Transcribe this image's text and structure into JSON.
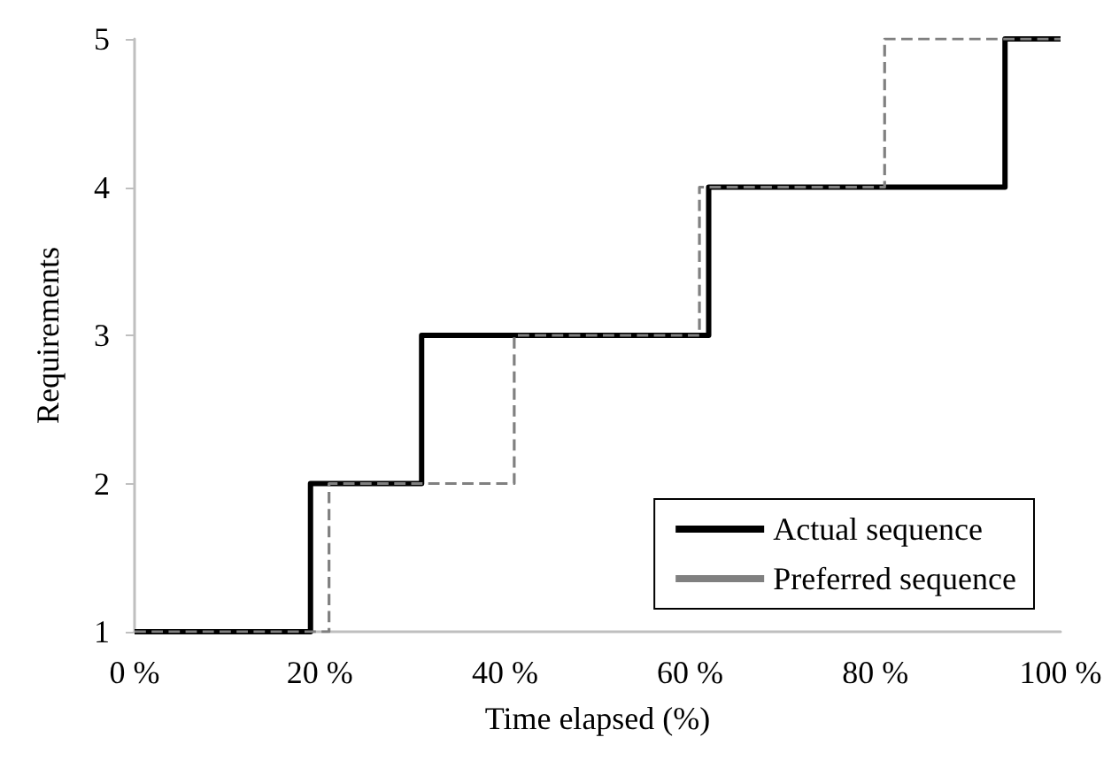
{
  "chart_data": {
    "type": "step",
    "xlabel": "Time elapsed (%)",
    "ylabel": "Requirements",
    "xlim": [
      0,
      100
    ],
    "xticks": [
      {
        "value": 0,
        "label": "0 %"
      },
      {
        "value": 20,
        "label": "20 %"
      },
      {
        "value": 40,
        "label": "40 %"
      },
      {
        "value": 60,
        "label": "60 %"
      },
      {
        "value": 80,
        "label": "80 %"
      },
      {
        "value": 100,
        "label": "100 %"
      }
    ],
    "ylim": [
      1,
      5
    ],
    "yticks": [
      1,
      2,
      3,
      4,
      5
    ],
    "grid": false,
    "legend": "bottom right",
    "marker": "none",
    "series": [
      {
        "name": "Actual sequence",
        "color": "#000000",
        "line_style": "solid",
        "x": [
          0,
          19,
          31,
          62,
          94,
          100
        ],
        "values": [
          1,
          2,
          3,
          4,
          5,
          5
        ]
      },
      {
        "name": "Preferred sequence",
        "color": "#808080",
        "line_style": "dashed",
        "x": [
          0,
          21,
          41,
          61,
          81,
          100
        ],
        "values": [
          1,
          2,
          3,
          4,
          5,
          5
        ]
      }
    ]
  }
}
